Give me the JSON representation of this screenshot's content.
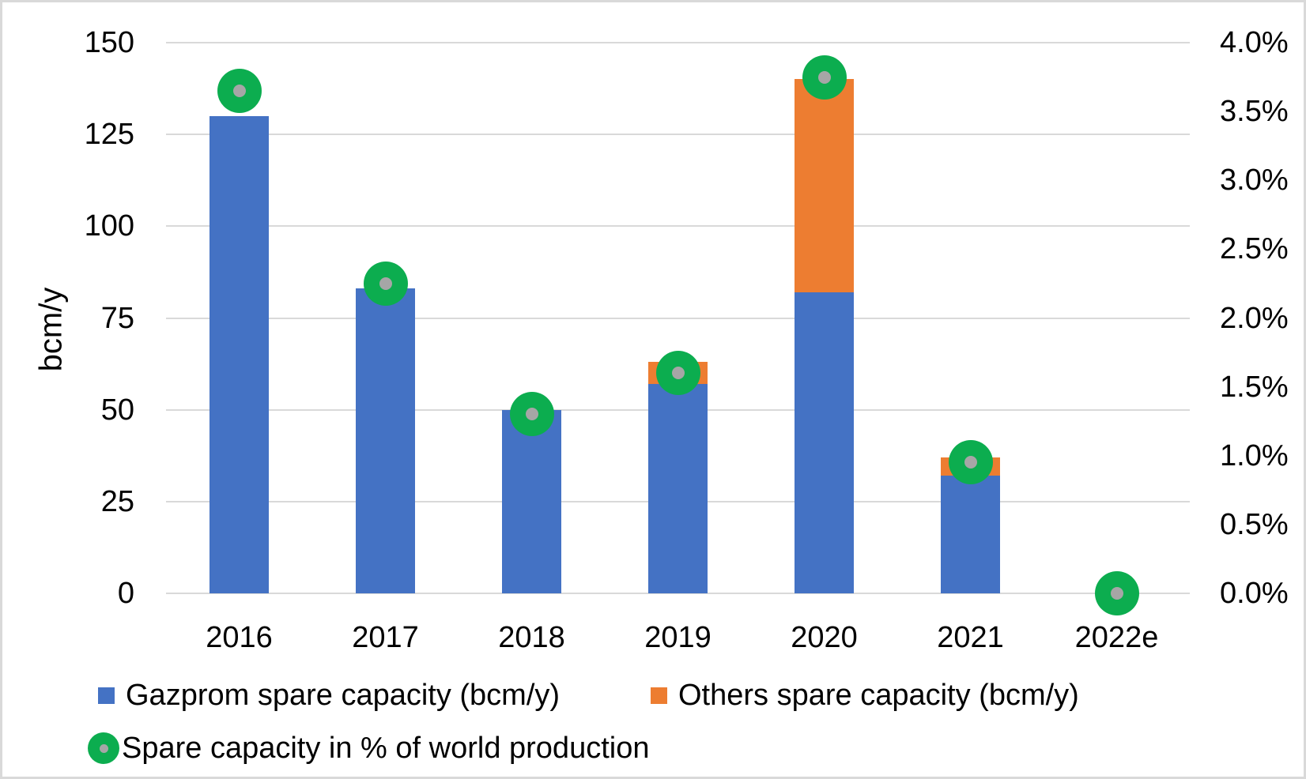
{
  "chart_data": {
    "type": "bar",
    "subtype": "stacked-bar-with-scatter-overlay",
    "categories": [
      "2016",
      "2017",
      "2018",
      "2019",
      "2020",
      "2021",
      "2022e"
    ],
    "series": [
      {
        "name": "Gazprom spare capacity (bcm/y)",
        "type": "bar",
        "stacked": true,
        "axis": "left",
        "color": "#4472C4",
        "values": [
          130,
          83,
          50,
          57,
          82,
          32,
          0
        ]
      },
      {
        "name": "Others spare capacity (bcm/y)",
        "type": "bar",
        "stacked": true,
        "axis": "left",
        "color": "#ED7D31",
        "values": [
          0,
          0,
          0,
          6,
          58,
          5,
          0
        ]
      },
      {
        "name": "Spare capacity in % of world production",
        "type": "scatter",
        "axis": "right",
        "color": "#0CAD4F",
        "marker_core_color": "#A6A6A6",
        "unit": "%",
        "values": [
          3.65,
          2.25,
          1.3,
          1.6,
          3.75,
          0.95,
          0.0
        ]
      }
    ],
    "left_axis": {
      "title": "bcm/y",
      "min": 0,
      "max": 150,
      "tick_step": 25
    },
    "right_axis": {
      "min": 0,
      "max": 4,
      "tick_step": 0.5,
      "tick_suffix": "%",
      "tick_decimals": 1
    },
    "grid": true,
    "legend_position": "bottom"
  },
  "colors": {
    "grid": "#D9D9D9",
    "border": "#D9D9D9",
    "text": "#000000",
    "background": "#FFFFFF"
  }
}
